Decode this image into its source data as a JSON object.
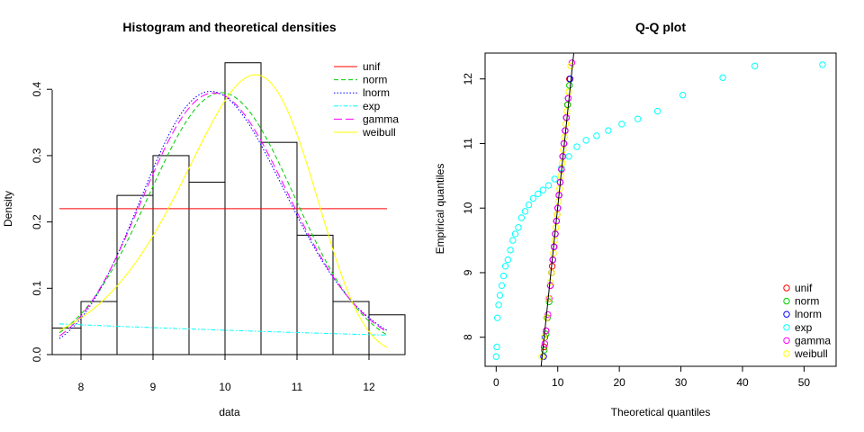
{
  "chart_data": [
    {
      "type": "histogram+density",
      "title": "Histogram and theoretical densities",
      "xlabel": "data",
      "ylabel": "Density",
      "xlim": [
        7.6,
        12.5
      ],
      "ylim": [
        0,
        0.46
      ],
      "xticks": [
        8,
        9,
        10,
        11,
        12
      ],
      "yticks": [
        0.0,
        0.1,
        0.2,
        0.3,
        0.4
      ],
      "ytick_labels": [
        "0.0",
        "0.1",
        "0.2",
        "0.3",
        "0.4"
      ],
      "bins": [
        {
          "x0": 7.5,
          "x1": 8.0,
          "density": 0.04
        },
        {
          "x0": 8.0,
          "x1": 8.5,
          "density": 0.08
        },
        {
          "x0": 8.5,
          "x1": 9.0,
          "density": 0.24
        },
        {
          "x0": 9.0,
          "x1": 9.5,
          "density": 0.3
        },
        {
          "x0": 9.5,
          "x1": 10.0,
          "density": 0.26
        },
        {
          "x0": 10.0,
          "x1": 10.5,
          "density": 0.44
        },
        {
          "x0": 10.5,
          "x1": 11.0,
          "density": 0.32
        },
        {
          "x0": 11.0,
          "x1": 11.5,
          "density": 0.18
        },
        {
          "x0": 11.5,
          "x1": 12.0,
          "density": 0.08
        },
        {
          "x0": 12.0,
          "x1": 12.5,
          "density": 0.06
        }
      ],
      "curve_range": [
        7.7,
        12.25
      ],
      "series": [
        {
          "name": "unif",
          "color": "#FF0000",
          "dash": "",
          "dist": "unif",
          "params": {
            "value": 0.22
          }
        },
        {
          "name": "norm",
          "color": "#00CD00",
          "dash": "5,3",
          "dist": "norm",
          "params": {
            "mean": 9.95,
            "sd": 1.01
          }
        },
        {
          "name": "lnorm",
          "color": "#0000FF",
          "dash": "1.5,2",
          "dist": "lnorm",
          "params": {
            "meanlog": 2.293,
            "sdlog": 0.102
          }
        },
        {
          "name": "exp",
          "color": "#00FFFF",
          "dash": "5,2,1.5,2",
          "dist": "exp",
          "params": {
            "rate": 0.1
          }
        },
        {
          "name": "gamma",
          "color": "#FF00FF",
          "dash": "9,4",
          "dist": "gamma",
          "params": {
            "shape": 96,
            "rate": 9.65
          }
        },
        {
          "name": "weibull",
          "color": "#FFFF00",
          "dash": "",
          "dist": "weibull",
          "params": {
            "shape": 12,
            "scale": 10.5
          }
        }
      ]
    },
    {
      "type": "scatter",
      "title": "Q-Q plot",
      "xlabel": "Theoretical quantiles",
      "ylabel": "Empirical quantiles",
      "xlim": [
        -1.8,
        55.2
      ],
      "ylim": [
        7.55,
        12.4
      ],
      "xticks": [
        0,
        10,
        20,
        30,
        40,
        50
      ],
      "yticks": [
        8,
        9,
        10,
        11,
        12
      ],
      "legend_position": "bottom-right",
      "reference_line": {
        "x1": 7.3,
        "y1": 7.55,
        "x2": 12.6,
        "y2": 12.4
      },
      "series": [
        {
          "name": "unif",
          "color": "#FF0000",
          "x": [
            7.8,
            8.1,
            8.3,
            8.6,
            8.8,
            9.0,
            9.1,
            9.4,
            9.6,
            9.8,
            9.9,
            10.2,
            10.4,
            10.6,
            10.8,
            11.0,
            11.2,
            11.4,
            11.6,
            11.9
          ],
          "y": [
            7.85,
            8.1,
            8.3,
            8.6,
            8.8,
            9.0,
            9.1,
            9.4,
            9.6,
            9.8,
            9.9,
            10.2,
            10.4,
            10.6,
            10.8,
            11.0,
            11.2,
            11.4,
            11.6,
            12.0
          ]
        },
        {
          "name": "norm",
          "color": "#00CD00",
          "x": [
            7.8,
            8.1,
            8.3,
            8.6,
            8.8,
            9.0,
            9.2,
            9.4,
            9.6,
            9.8,
            10.0,
            10.2,
            10.4,
            10.6,
            10.8,
            11.0,
            11.2,
            11.4,
            11.6,
            11.9
          ],
          "y": [
            7.8,
            8.05,
            8.3,
            8.55,
            8.8,
            9.0,
            9.2,
            9.4,
            9.6,
            9.8,
            10.0,
            10.2,
            10.4,
            10.6,
            10.8,
            11.0,
            11.2,
            11.4,
            11.6,
            11.9
          ]
        },
        {
          "name": "lnorm",
          "color": "#0000FF",
          "x": [
            7.7,
            7.9,
            8.2,
            8.5,
            8.8,
            9.0,
            9.2,
            9.4,
            9.6,
            9.8,
            10.0,
            10.2,
            10.4,
            10.6,
            10.8,
            11.0,
            11.2,
            11.4,
            11.7,
            12.0
          ],
          "y": [
            7.7,
            8.0,
            8.3,
            8.6,
            8.8,
            9.0,
            9.2,
            9.4,
            9.6,
            9.8,
            10.0,
            10.2,
            10.4,
            10.6,
            10.8,
            11.0,
            11.2,
            11.4,
            11.7,
            12.0
          ]
        },
        {
          "name": "exp",
          "color": "#00FFFF",
          "x": [
            0.0,
            0.1,
            0.2,
            0.4,
            0.6,
            0.9,
            1.2,
            1.5,
            1.9,
            2.3,
            2.7,
            3.1,
            3.6,
            4.1,
            4.7,
            5.3,
            6.0,
            6.8,
            7.6,
            8.5,
            9.5,
            10.6,
            11.8,
            13.1,
            14.6,
            16.3,
            18.2,
            20.4,
            23.0,
            26.2,
            30.3,
            36.8,
            42.0,
            53.0
          ],
          "y": [
            7.7,
            7.85,
            8.3,
            8.5,
            8.65,
            8.8,
            8.95,
            9.1,
            9.2,
            9.35,
            9.5,
            9.6,
            9.7,
            9.85,
            9.95,
            10.05,
            10.15,
            10.22,
            10.28,
            10.35,
            10.45,
            10.62,
            10.8,
            10.95,
            11.05,
            11.12,
            11.2,
            11.3,
            11.38,
            11.5,
            11.75,
            12.02,
            12.2,
            12.22
          ]
        },
        {
          "name": "gamma",
          "color": "#FF00FF",
          "x": [
            7.9,
            8.1,
            8.4,
            8.6,
            8.8,
            9.0,
            9.2,
            9.4,
            9.6,
            9.8,
            10.0,
            10.2,
            10.4,
            10.6,
            10.8,
            11.0,
            11.2,
            11.4,
            11.7,
            12.3
          ],
          "y": [
            7.9,
            8.1,
            8.35,
            8.6,
            8.8,
            9.0,
            9.2,
            9.4,
            9.6,
            9.8,
            10.0,
            10.2,
            10.4,
            10.6,
            10.8,
            11.0,
            11.2,
            11.4,
            11.7,
            12.25
          ]
        },
        {
          "name": "weibull",
          "color": "#FFFF00",
          "x": [
            7.4,
            7.8,
            8.2,
            8.5,
            8.8,
            9.0,
            9.3,
            9.5,
            9.7,
            9.9,
            10.1,
            10.3,
            10.5,
            10.7,
            10.9,
            11.1,
            11.3,
            11.5,
            11.8,
            12.1
          ],
          "y": [
            7.7,
            8.0,
            8.3,
            8.6,
            8.85,
            9.0,
            9.3,
            9.5,
            9.7,
            9.9,
            10.1,
            10.3,
            10.5,
            10.7,
            10.9,
            11.1,
            11.3,
            11.5,
            11.8,
            12.2
          ]
        }
      ]
    }
  ]
}
